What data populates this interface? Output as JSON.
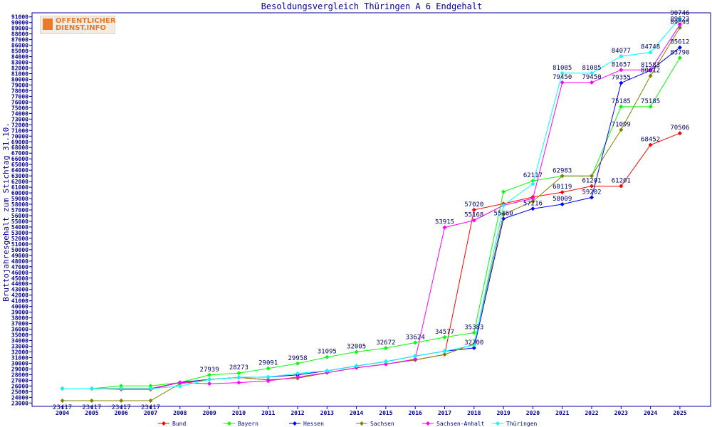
{
  "logo": {
    "line1": "OFFENTLICHER",
    "line2": "DIENST.INFO"
  },
  "chart_data": {
    "type": "line",
    "title": "Besoldungsvergleich Thüringen A 6 Endgehalt",
    "ylabel": "Bruttojahresgehalt zum Stichtag 31.10.",
    "xlabel": "",
    "x": [
      "2004",
      "2005",
      "2006",
      "2007",
      "2008",
      "2009",
      "2010",
      "2011",
      "2012",
      "2013",
      "2014",
      "2015",
      "2016",
      "2017",
      "2018",
      "2019",
      "2020",
      "2021",
      "2022",
      "2023",
      "2024",
      "2025"
    ],
    "ylim": [
      23000,
      91000
    ],
    "ytick_step": 1000,
    "grid": false,
    "legend_position": "bottom",
    "series": [
      {
        "name": "Bund",
        "color": "#ff0000",
        "values": [
          25549,
          25549,
          25413,
          25413,
          26604,
          27161,
          27502,
          27075,
          27371,
          28345,
          29204,
          29860,
          30595,
          31553,
          57020,
          58092,
          59270,
          60119,
          61201,
          61201,
          68452,
          70506
        ],
        "labels": [
          "",
          "",
          "",
          "",
          "",
          "",
          "",
          "",
          "",
          "",
          "",
          "",
          "",
          "",
          "57020",
          "",
          "",
          "60119",
          "61201",
          "61201",
          "68452",
          "70506"
        ]
      },
      {
        "name": "Bayern",
        "color": "#00ff00",
        "values": [
          25549,
          25549,
          26010,
          26010,
          26604,
          27939,
          28273,
          29091,
          29958,
          31095,
          32005,
          32672,
          33624,
          34577,
          35383,
          60199,
          62117,
          62983,
          62983,
          75185,
          75185,
          83790
        ],
        "labels": [
          "",
          "",
          "",
          "",
          "",
          "27939",
          "28273",
          "29091",
          "29958",
          "31095",
          "32005",
          "32672",
          "33624",
          "34577",
          "35383",
          "",
          "62117",
          "62983",
          "",
          "75185",
          "75185",
          "83790"
        ]
      },
      {
        "name": "Hessen",
        "color": "#0000ff",
        "values": [
          25549,
          25549,
          25549,
          25549,
          26604,
          27161,
          27502,
          27575,
          27951,
          28672,
          29534,
          30299,
          31280,
          32126,
          32700,
          55460,
          57216,
          58009,
          59202,
          79355,
          81583,
          85612
        ],
        "labels": [
          "",
          "",
          "",
          "",
          "",
          "",
          "",
          "",
          "",
          "",
          "",
          "",
          "",
          "",
          "32700",
          "55460",
          "57216",
          "58009",
          "59202",
          "79355",
          "81583",
          "85612"
        ]
      },
      {
        "name": "Sachsen",
        "color": "#808000",
        "values": [
          23417,
          23417,
          23417,
          23417,
          26400,
          27161,
          27502,
          27075,
          27371,
          28345,
          29204,
          29860,
          30595,
          31553,
          33400,
          56214,
          58500,
          62983,
          62983,
          71099,
          80612,
          89095
        ],
        "labels": [
          "23417",
          "23417",
          "23417",
          "23417",
          "",
          "",
          "",
          "",
          "",
          "",
          "",
          "",
          "",
          "",
          "",
          "",
          "",
          "",
          "",
          "71099",
          "80612",
          "89095"
        ]
      },
      {
        "name": "Sachsen-Anhalt",
        "color": "#ff00ff",
        "values": [
          25549,
          25549,
          25549,
          25549,
          26604,
          26400,
          26601,
          26893,
          27571,
          28346,
          29204,
          29846,
          30734,
          53915,
          55168,
          57822,
          59016,
          79450,
          79450,
          81657,
          81657,
          89623
        ],
        "labels": [
          "",
          "",
          "",
          "",
          "",
          "",
          "",
          "",
          "",
          "",
          "",
          "",
          "",
          "53915",
          "55168",
          "",
          "",
          "79450",
          "79450",
          "81657",
          "",
          "89623"
        ]
      },
      {
        "name": "Thüringen",
        "color": "#00ffff",
        "values": [
          25549,
          25549,
          25549,
          25549,
          25949,
          27161,
          27502,
          27575,
          28200,
          28672,
          29534,
          30299,
          31280,
          32126,
          33200,
          57822,
          61573,
          81085,
          81085,
          84077,
          84748,
          90746
        ],
        "labels": [
          "",
          "",
          "",
          "",
          "",
          "",
          "",
          "",
          "",
          "",
          "",
          "",
          "",
          "",
          "",
          "",
          "",
          "81085",
          "81085",
          "84077",
          "84748",
          "90746"
        ]
      }
    ]
  }
}
